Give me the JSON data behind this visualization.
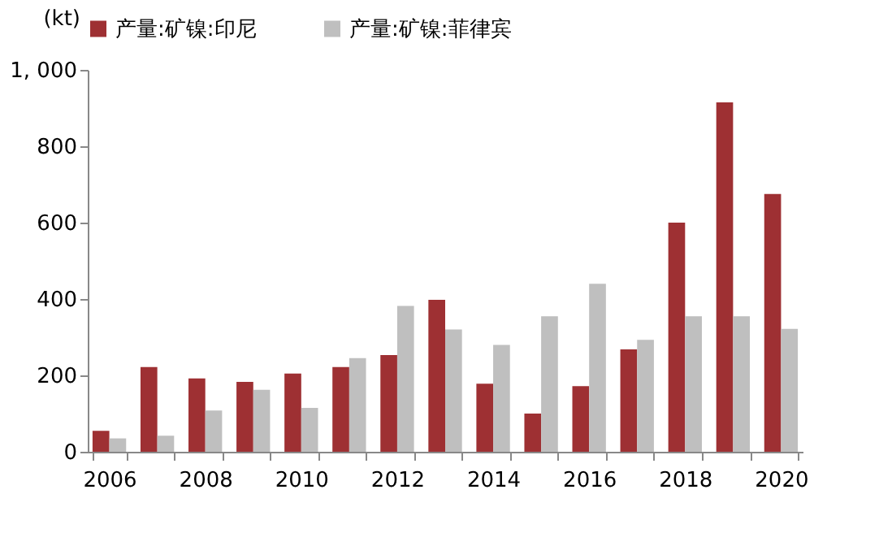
{
  "chart_data": {
    "type": "bar",
    "ylabel": "(kt)",
    "categories": [
      "2006",
      null,
      "2008",
      null,
      "2010",
      null,
      "2012",
      null,
      "2014",
      null,
      "2016",
      null,
      "2018",
      null,
      "2020"
    ],
    "series": [
      {
        "name": "产量:矿镍:印尼",
        "color": "#9e3033",
        "values": [
          55,
          222,
          192,
          183,
          205,
          222,
          253,
          398,
          178,
          100,
          172,
          268,
          600,
          915,
          675
        ]
      },
      {
        "name": "产量:矿镍:菲律宾",
        "color": "#bfbfbf",
        "values": [
          35,
          42,
          108,
          162,
          115,
          245,
          382,
          320,
          280,
          355,
          440,
          293,
          355,
          355,
          322
        ]
      }
    ],
    "ylim": [
      0,
      1000
    ],
    "yticks": [
      0,
      200,
      400,
      600,
      800,
      {
        "value": 1000,
        "label": "1, 000"
      }
    ],
    "grid": false,
    "legend": "top"
  }
}
